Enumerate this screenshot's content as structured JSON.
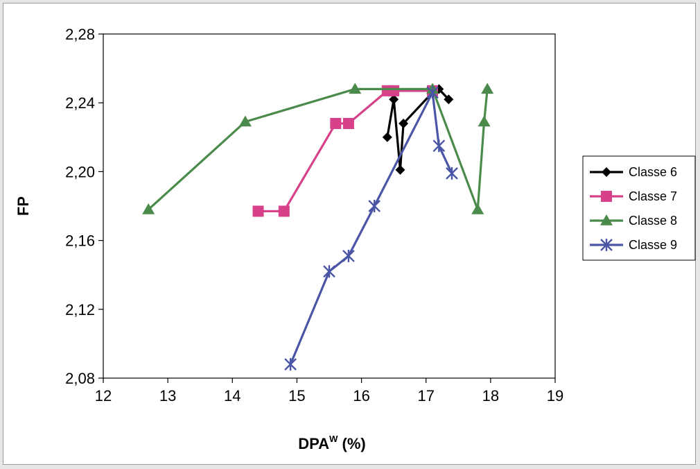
{
  "chart_data": {
    "type": "line",
    "title": "",
    "xlabel": "DPA",
    "xlabel_superscript": "W",
    "xlabel_suffix": " (%)",
    "ylabel": "FP",
    "xlim": [
      12,
      19
    ],
    "ylim": [
      2.08,
      2.28
    ],
    "x_ticks": [
      "12",
      "13",
      "14",
      "15",
      "16",
      "17",
      "18",
      "19"
    ],
    "y_ticks": [
      "2,08",
      "2,12",
      "2,16",
      "2,20",
      "2,24",
      "2,28"
    ],
    "x_tick_values": [
      12,
      13,
      14,
      15,
      16,
      17,
      18,
      19
    ],
    "y_tick_values": [
      2.08,
      2.12,
      2.16,
      2.2,
      2.24,
      2.28
    ],
    "grid": false,
    "legend_position": "right",
    "series": [
      {
        "name": "Classe 6",
        "color": "#000000",
        "marker": "diamond",
        "points": [
          [
            16.4,
            2.22
          ],
          [
            16.5,
            2.242
          ],
          [
            16.6,
            2.201
          ],
          [
            16.65,
            2.228
          ],
          [
            17.1,
            2.246
          ],
          [
            17.2,
            2.248
          ],
          [
            17.35,
            2.242
          ]
        ]
      },
      {
        "name": "Classe 7",
        "color": "#d6418a",
        "marker": "square",
        "points": [
          [
            14.4,
            2.177
          ],
          [
            14.8,
            2.177
          ],
          [
            15.6,
            2.228
          ],
          [
            15.8,
            2.228
          ],
          [
            16.4,
            2.247
          ],
          [
            16.5,
            2.247
          ],
          [
            17.1,
            2.247
          ]
        ]
      },
      {
        "name": "Classe 8",
        "color": "#4a8a4a",
        "marker": "triangle",
        "points": [
          [
            12.7,
            2.178
          ],
          [
            14.2,
            2.229
          ],
          [
            15.9,
            2.248
          ],
          [
            17.1,
            2.248
          ],
          [
            17.8,
            2.178
          ],
          [
            17.9,
            2.229
          ],
          [
            17.95,
            2.248
          ]
        ]
      },
      {
        "name": "Classe 9",
        "color": "#4a55a5",
        "marker": "star",
        "points": [
          [
            14.9,
            2.088
          ],
          [
            15.5,
            2.142
          ],
          [
            15.8,
            2.151
          ],
          [
            16.2,
            2.18
          ],
          [
            17.1,
            2.246
          ],
          [
            17.2,
            2.215
          ],
          [
            17.4,
            2.199
          ]
        ]
      }
    ]
  }
}
